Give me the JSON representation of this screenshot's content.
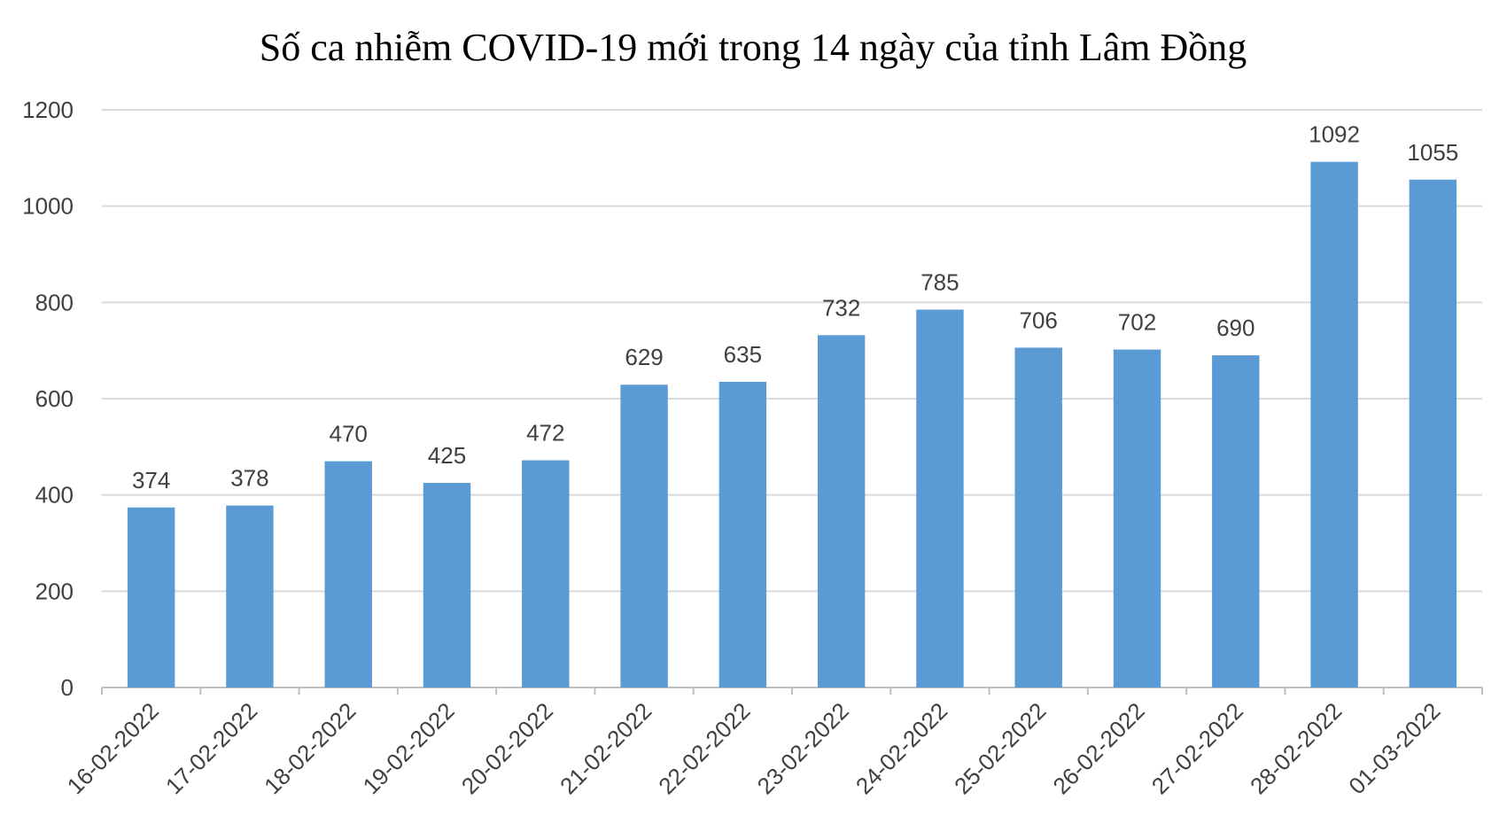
{
  "chart_data": {
    "type": "bar",
    "title": "Số ca nhiễm COVID-19 mới trong 14 ngày của tỉnh Lâm Đồng",
    "xlabel": "",
    "ylabel": "",
    "categories": [
      "16-02-2022",
      "17-02-2022",
      "18-02-2022",
      "19-02-2022",
      "20-02-2022",
      "21-02-2022",
      "22-02-2022",
      "23-02-2022",
      "24-02-2022",
      "25-02-2022",
      "26-02-2022",
      "27-02-2022",
      "28-02-2022",
      "01-03-2022"
    ],
    "values": [
      374,
      378,
      470,
      425,
      472,
      629,
      635,
      732,
      785,
      706,
      702,
      690,
      1092,
      1055
    ],
    "data_labels": [
      "374",
      "378",
      "470",
      "425",
      "472",
      "629",
      "635",
      "732",
      "785",
      "706",
      "702",
      "690",
      "1092",
      "1055"
    ],
    "ylim": [
      0,
      1200
    ],
    "y_ticks": [
      0,
      200,
      400,
      600,
      800,
      1000,
      1200
    ],
    "y_tick_labels": [
      "0",
      "200",
      "400",
      "600",
      "800",
      "1000",
      "1200"
    ],
    "grid": true,
    "legend": "none",
    "colors": {
      "bar": "#5B9BD5",
      "grid": "#D9D9D9",
      "axis": "#BFBFBF",
      "text": "#404040"
    }
  }
}
